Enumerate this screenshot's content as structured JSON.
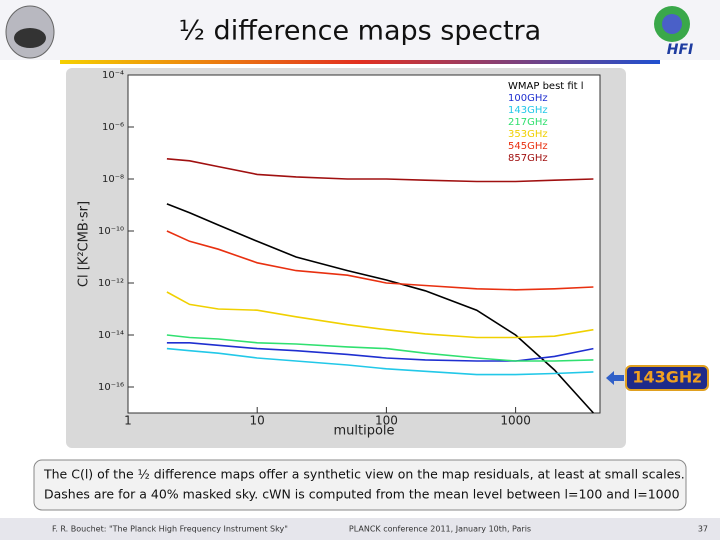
{
  "slide": {
    "title": "½ difference maps spectra",
    "logo_text": "HFI",
    "callout": "143GHz",
    "caption": [
      "The C(l) of the ½ difference maps offer a synthetic view on the map residuals, at least at small scales.",
      "Dashes are for a 40% masked sky. cWN is computed from the mean level between  l=100 and l=1000"
    ],
    "footer": {
      "left": "F. R. Bouchet: \"The Planck High Frequency Instrument Sky\"",
      "center": "PLANCK conference 2011, January 10th, Paris",
      "page": "37"
    }
  },
  "chart_data": {
    "type": "line",
    "x_label": "multipole",
    "y_label": "Cl [K²CMB·sr]",
    "xscale": "log",
    "yscale": "log",
    "xlim": [
      1,
      4500
    ],
    "ylim": [
      1e-17,
      0.0001
    ],
    "xticks": [
      1,
      10,
      100,
      1000
    ],
    "yticks": [
      {
        "value": 0.0001,
        "label": "10⁻⁴"
      },
      {
        "value": 1e-06,
        "label": "10⁻⁶"
      },
      {
        "value": 1e-08,
        "label": "10⁻⁸"
      },
      {
        "value": 1e-10,
        "label": "10⁻¹⁰"
      },
      {
        "value": 1e-12,
        "label": "10⁻¹²"
      },
      {
        "value": 1e-14,
        "label": "10⁻¹⁴"
      },
      {
        "value": 1e-16,
        "label": "10⁻¹⁶"
      }
    ],
    "x": [
      2,
      3,
      5,
      10,
      20,
      50,
      100,
      200,
      500,
      1000,
      2000,
      4000
    ],
    "series": [
      {
        "name": "WMAP best fit l",
        "color": "#000000",
        "values": [
          1.1e-09,
          5e-10,
          1.7e-10,
          4e-11,
          1e-11,
          3e-12,
          1.3e-12,
          5e-13,
          9e-14,
          1e-14,
          4.5e-16,
          1e-17
        ]
      },
      {
        "name": "100GHz",
        "color": "#1f2fd0",
        "values": [
          5e-15,
          5e-15,
          4e-15,
          3e-15,
          2.5e-15,
          1.8e-15,
          1.3e-15,
          1.1e-15,
          1e-15,
          1e-15,
          1.5e-15,
          3e-15
        ]
      },
      {
        "name": "143GHz",
        "color": "#22c8e8",
        "values": [
          3e-15,
          2.5e-15,
          2e-15,
          1.3e-15,
          1e-15,
          7e-16,
          5e-16,
          4e-16,
          3e-16,
          3e-16,
          3.3e-16,
          3.8e-16
        ]
      },
      {
        "name": "217GHz",
        "color": "#30e070",
        "values": [
          1e-14,
          8e-15,
          7e-15,
          5e-15,
          4.5e-15,
          3.5e-15,
          3e-15,
          2e-15,
          1.3e-15,
          1e-15,
          1e-15,
          1.1e-15
        ]
      },
      {
        "name": "353GHz",
        "color": "#f0d000",
        "values": [
          4.5e-13,
          1.5e-13,
          1e-13,
          9e-14,
          5e-14,
          2.5e-14,
          1.6e-14,
          1.1e-14,
          8e-15,
          8e-15,
          9e-15,
          1.6e-14
        ]
      },
      {
        "name": "545GHz",
        "color": "#e83010",
        "values": [
          1e-10,
          4e-11,
          2e-11,
          6e-12,
          3e-12,
          2e-12,
          1e-12,
          8e-13,
          6e-13,
          5.5e-13,
          6e-13,
          7e-13
        ]
      },
      {
        "name": "857GHz",
        "color": "#a01010",
        "values": [
          6e-08,
          5e-08,
          3e-08,
          1.5e-08,
          1.2e-08,
          1e-08,
          1e-08,
          9e-09,
          8e-09,
          8e-09,
          9e-09,
          1e-08
        ]
      }
    ]
  }
}
